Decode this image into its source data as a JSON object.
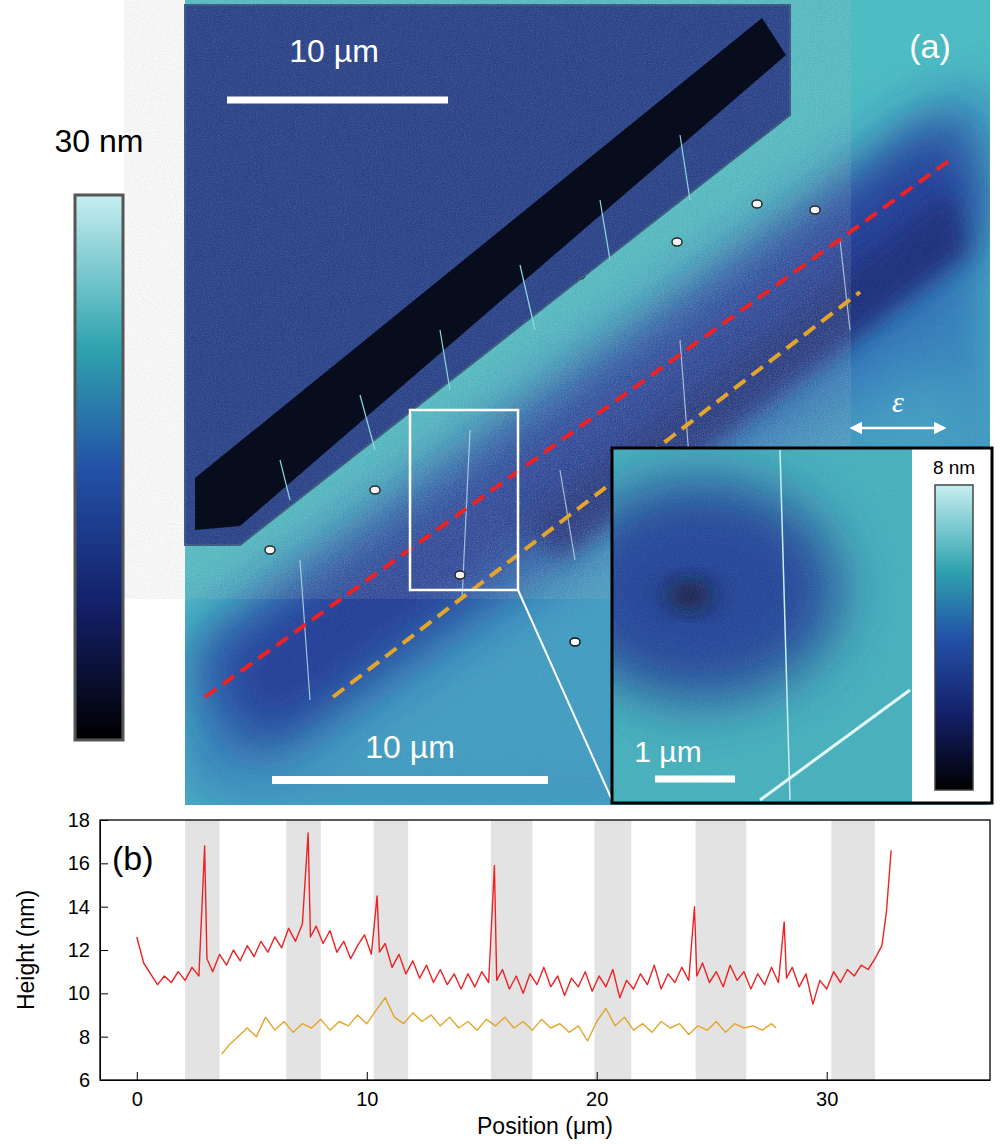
{
  "chart_data": [
    {
      "type": "image",
      "panel_label": "(a)",
      "colorbar": {
        "label": "30 nm",
        "range": [
          0,
          30
        ]
      },
      "scale_bars": [
        "10 µm",
        "10 µm"
      ],
      "annotations": [
        "ε"
      ],
      "inset": {
        "scale_bar": "1 µm",
        "colorbar": {
          "label": "8 nm",
          "range": [
            0,
            8
          ]
        }
      }
    },
    {
      "type": "line",
      "panel_label": "(b)",
      "x_label": "Position (μm)",
      "y_label": "Height (nm)",
      "xlim": [
        -1.6,
        37.1
      ],
      "xticks": [
        0,
        10,
        20,
        30
      ],
      "ylim": [
        6,
        18
      ],
      "yticks": [
        6,
        8,
        10,
        12,
        14,
        16,
        18
      ],
      "bands": [
        [
          2.1,
          3.6
        ],
        [
          6.5,
          8.0
        ],
        [
          10.3,
          11.8
        ],
        [
          15.4,
          17.2
        ],
        [
          19.9,
          21.5
        ],
        [
          24.3,
          26.5
        ],
        [
          30.2,
          32.1
        ]
      ],
      "series": [
        {
          "color": "#ee2222",
          "x": [
            0,
            0.3,
            0.6,
            0.9,
            1.2,
            1.5,
            1.8,
            2.1,
            2.4,
            2.7,
            2.95,
            3.05,
            3.3,
            3.6,
            3.9,
            4.2,
            4.5,
            4.8,
            5.1,
            5.4,
            5.7,
            6.0,
            6.3,
            6.6,
            6.9,
            7.2,
            7.45,
            7.55,
            7.8,
            8.1,
            8.4,
            8.7,
            9.0,
            9.3,
            9.6,
            9.9,
            10.2,
            10.45,
            10.55,
            10.8,
            11.1,
            11.4,
            11.7,
            12.0,
            12.3,
            12.6,
            12.9,
            13.2,
            13.5,
            13.8,
            14.1,
            14.4,
            14.7,
            15.0,
            15.3,
            15.55,
            15.65,
            15.9,
            16.2,
            16.5,
            16.8,
            17.1,
            17.4,
            17.7,
            18.0,
            18.3,
            18.6,
            18.9,
            19.2,
            19.5,
            19.8,
            20.1,
            20.4,
            20.7,
            21.0,
            21.3,
            21.6,
            21.9,
            22.2,
            22.5,
            22.8,
            23.1,
            23.4,
            23.7,
            24.0,
            24.25,
            24.35,
            24.6,
            24.9,
            25.2,
            25.5,
            25.8,
            26.1,
            26.4,
            26.7,
            27.0,
            27.3,
            27.6,
            27.9,
            28.15,
            28.25,
            28.5,
            28.8,
            29.1,
            29.4,
            29.7,
            30.0,
            30.3,
            30.6,
            30.9,
            31.2,
            31.5,
            31.8,
            32.1,
            32.4,
            32.6,
            32.8
          ],
          "values": [
            12.6,
            11.4,
            10.9,
            10.4,
            10.8,
            10.5,
            11.0,
            10.6,
            11.2,
            10.8,
            16.8,
            11.6,
            11.0,
            11.8,
            11.3,
            12.0,
            11.5,
            12.2,
            11.7,
            12.4,
            11.9,
            12.6,
            12.1,
            13.0,
            12.4,
            13.2,
            17.4,
            12.6,
            13.1,
            12.3,
            12.9,
            11.9,
            12.4,
            11.6,
            12.2,
            12.7,
            11.8,
            14.5,
            11.9,
            12.3,
            11.2,
            11.8,
            10.9,
            11.5,
            10.7,
            11.3,
            10.5,
            11.1,
            10.4,
            10.9,
            10.2,
            10.9,
            10.3,
            11.0,
            10.5,
            15.9,
            10.6,
            11.1,
            10.2,
            10.8,
            10.0,
            10.9,
            10.4,
            11.2,
            10.3,
            10.8,
            9.9,
            10.7,
            10.3,
            11.0,
            10.1,
            10.8,
            10.3,
            11.1,
            9.8,
            10.6,
            10.2,
            10.9,
            10.4,
            11.3,
            10.2,
            10.9,
            10.5,
            11.2,
            10.6,
            14.0,
            10.8,
            11.4,
            10.5,
            11.0,
            10.3,
            11.3,
            10.6,
            11.0,
            10.2,
            10.9,
            10.4,
            11.2,
            10.5,
            13.3,
            10.7,
            11.2,
            10.3,
            10.9,
            9.5,
            10.6,
            10.2,
            11.0,
            10.5,
            11.1,
            10.8,
            11.3,
            11.1,
            11.6,
            12.2,
            13.8,
            16.6
          ]
        },
        {
          "color": "#e3a52a",
          "x": [
            3.7,
            4.0,
            4.4,
            4.8,
            5.2,
            5.6,
            6.0,
            6.4,
            6.8,
            7.2,
            7.6,
            8.0,
            8.4,
            8.8,
            9.2,
            9.6,
            10.0,
            10.4,
            10.8,
            11.2,
            11.6,
            12.0,
            12.4,
            12.8,
            13.2,
            13.6,
            14.0,
            14.4,
            14.8,
            15.2,
            15.6,
            16.0,
            16.4,
            16.8,
            17.2,
            17.6,
            18.0,
            18.4,
            18.8,
            19.2,
            19.6,
            20.0,
            20.4,
            20.8,
            21.2,
            21.6,
            22.0,
            22.4,
            22.8,
            23.2,
            23.6,
            24.0,
            24.4,
            24.8,
            25.2,
            25.6,
            26.0,
            26.4,
            26.8,
            27.2,
            27.6,
            27.8
          ],
          "values": [
            7.2,
            7.6,
            8.0,
            8.4,
            8.0,
            8.9,
            8.3,
            8.7,
            8.2,
            8.6,
            8.4,
            8.8,
            8.3,
            8.7,
            8.5,
            9.0,
            8.6,
            9.2,
            9.8,
            8.9,
            8.6,
            9.1,
            8.7,
            9.0,
            8.5,
            8.9,
            8.4,
            8.7,
            8.3,
            8.8,
            8.5,
            8.9,
            8.4,
            8.7,
            8.3,
            8.8,
            8.4,
            8.6,
            8.2,
            8.5,
            7.8,
            8.7,
            9.3,
            8.5,
            8.9,
            8.3,
            8.6,
            8.2,
            8.7,
            8.4,
            8.6,
            8.1,
            8.5,
            8.3,
            8.7,
            8.2,
            8.6,
            8.4,
            8.5,
            8.3,
            8.6,
            8.4
          ]
        }
      ]
    }
  ]
}
